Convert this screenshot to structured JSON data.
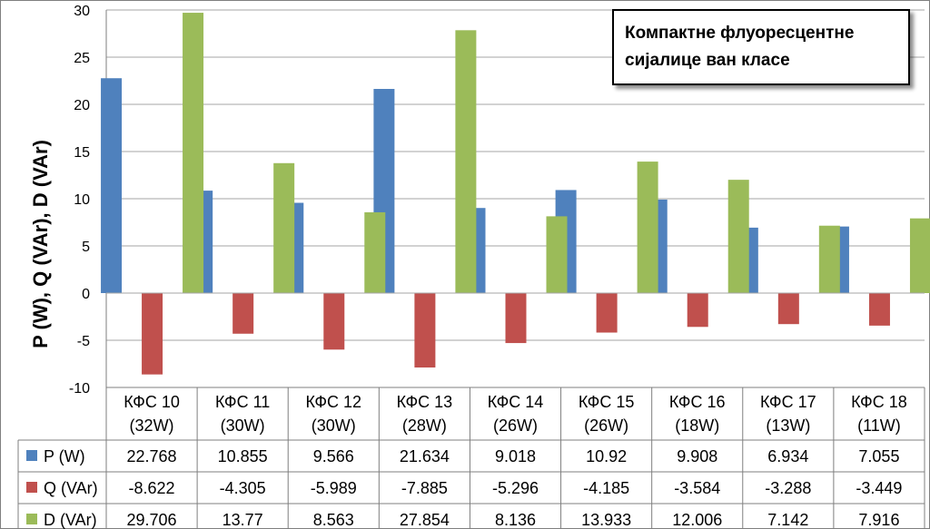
{
  "chart_data": {
    "type": "bar",
    "title_lines": [
      "Компактне флуоресцентне",
      "сијалице ван класе"
    ],
    "xlabel": "",
    "ylabel": "P (W), Q (VAr), D (VAr)",
    "ylim": [
      -10,
      30
    ],
    "yticks": [
      30,
      25,
      20,
      15,
      10,
      5,
      0,
      -5,
      -10
    ],
    "grid": true,
    "legend": "data-table",
    "categories": [
      [
        "КФС 10",
        "(32W)"
      ],
      [
        "КФС 11",
        "(30W)"
      ],
      [
        "КФС 12",
        "(30W)"
      ],
      [
        "КФС 13",
        "(28W)"
      ],
      [
        "КФС 14",
        "(26W)"
      ],
      [
        "КФС 15",
        "(26W)"
      ],
      [
        "КФС 16",
        "(18W)"
      ],
      [
        "КФС 17",
        "(13W)"
      ],
      [
        "КФС 18",
        "(11W)"
      ]
    ],
    "series": [
      {
        "name": "P (W)",
        "color": "#4f81bd",
        "values": [
          22.768,
          10.855,
          9.566,
          21.634,
          9.018,
          10.92,
          9.908,
          6.934,
          7.055
        ],
        "labels": [
          "22.768",
          "10.855",
          "9.566",
          "21.634",
          "9.018",
          "10.92",
          "9.908",
          "6.934",
          "7.055"
        ]
      },
      {
        "name": "Q (VAr)",
        "color": "#c0504d",
        "values": [
          -8.622,
          -4.305,
          -5.989,
          -7.885,
          -5.296,
          -4.185,
          -3.584,
          -3.288,
          -3.449
        ],
        "labels": [
          "-8.622",
          "-4.305",
          "-5.989",
          "-7.885",
          "-5.296",
          "-4.185",
          "-3.584",
          "-3.288",
          "-3.449"
        ]
      },
      {
        "name": "D (VAr)",
        "color": "#9bbb59",
        "values": [
          29.706,
          13.77,
          8.563,
          27.854,
          8.136,
          13.933,
          12.006,
          7.142,
          7.916
        ],
        "labels": [
          "29.706",
          "13.77",
          "8.563",
          "27.854",
          "8.136",
          "13.933",
          "12.006",
          "7.142",
          "7.916"
        ]
      }
    ]
  }
}
